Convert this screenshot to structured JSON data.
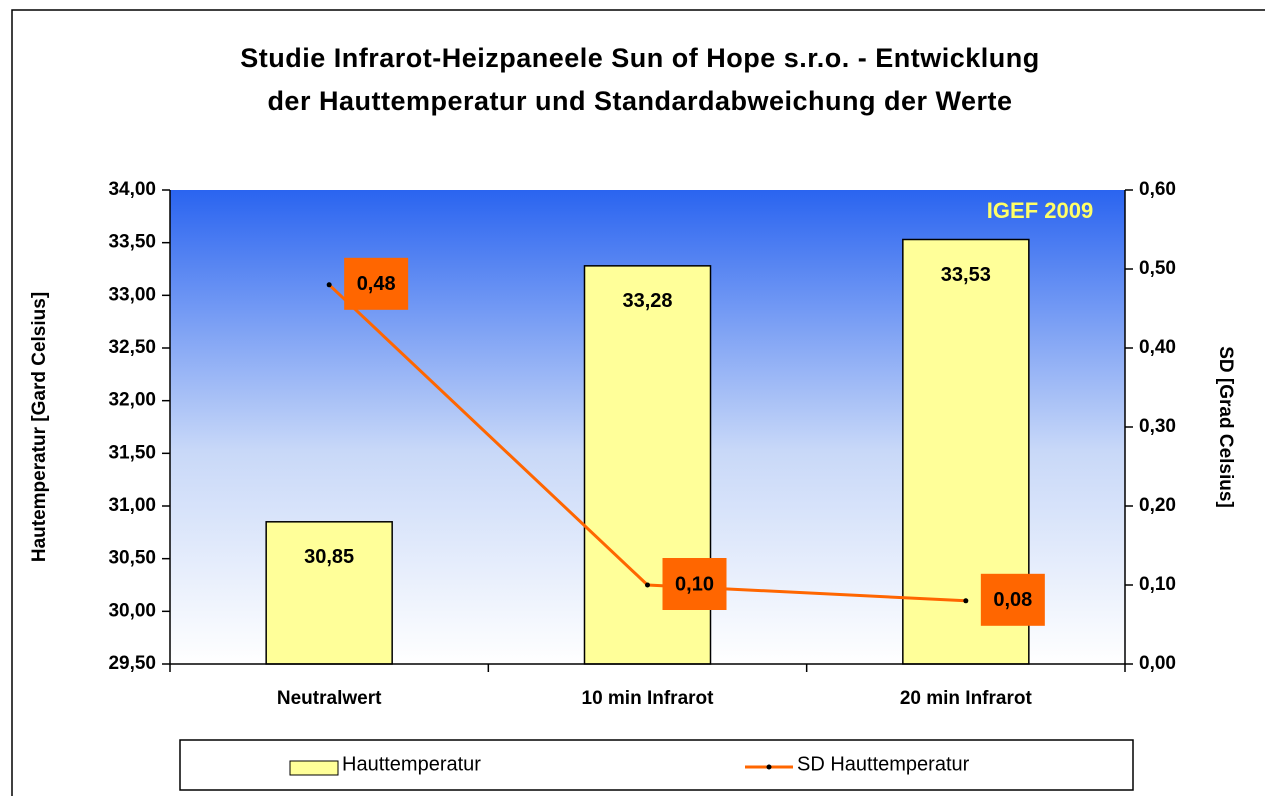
{
  "chart_data": {
    "type": "bar",
    "title": [
      "Studie Infrarot-Heizpaneele Sun of Hope s.r.o. - Entwicklung",
      "der Hauttemperatur und Standardabweichung der Werte"
    ],
    "annotation": "IGEF 2009",
    "y_label": "Hautemperatur [Gard Celsius]",
    "y2_label": "SD [Grad Celsius]",
    "categories": [
      "Neutralwert",
      "10 min Infrarot",
      "20 min Infrarot"
    ],
    "series": [
      {
        "name": "Hauttemperatur",
        "type": "bar",
        "color": "#ffff99",
        "values": [
          30.85,
          33.28,
          33.53
        ],
        "value_labels": [
          "30,85",
          "33,28",
          "33,53"
        ]
      },
      {
        "name": "SD Hauttemperatur",
        "type": "line",
        "axis": "y2",
        "color": "#ff6600",
        "values": [
          0.48,
          0.1,
          0.08
        ],
        "value_labels": [
          "0,48",
          "0,10",
          "0,08"
        ]
      }
    ],
    "ylim": [
      29.5,
      34
    ],
    "yticks": [
      {
        "value": 29.5,
        "label": "29,50"
      },
      {
        "value": 30,
        "label": "30,00"
      },
      {
        "value": 30.5,
        "label": "30,50"
      },
      {
        "value": 31,
        "label": "31,00"
      },
      {
        "value": 31.5,
        "label": "31,50"
      },
      {
        "value": 32,
        "label": "32,00"
      },
      {
        "value": 32.5,
        "label": "32,50"
      },
      {
        "value": 33,
        "label": "33,00"
      },
      {
        "value": 33.5,
        "label": "33,50"
      },
      {
        "value": 34,
        "label": "34,00"
      }
    ],
    "y2lim": [
      0,
      0.6
    ],
    "y2ticks": [
      {
        "value": 0,
        "label": "0,00"
      },
      {
        "value": 0.1,
        "label": "0,10"
      },
      {
        "value": 0.2,
        "label": "0,20"
      },
      {
        "value": 0.3,
        "label": "0,30"
      },
      {
        "value": 0.4,
        "label": "0,40"
      },
      {
        "value": 0.5,
        "label": "0,50"
      },
      {
        "value": 0.6,
        "label": "0,60"
      }
    ],
    "legend": "bottom"
  }
}
